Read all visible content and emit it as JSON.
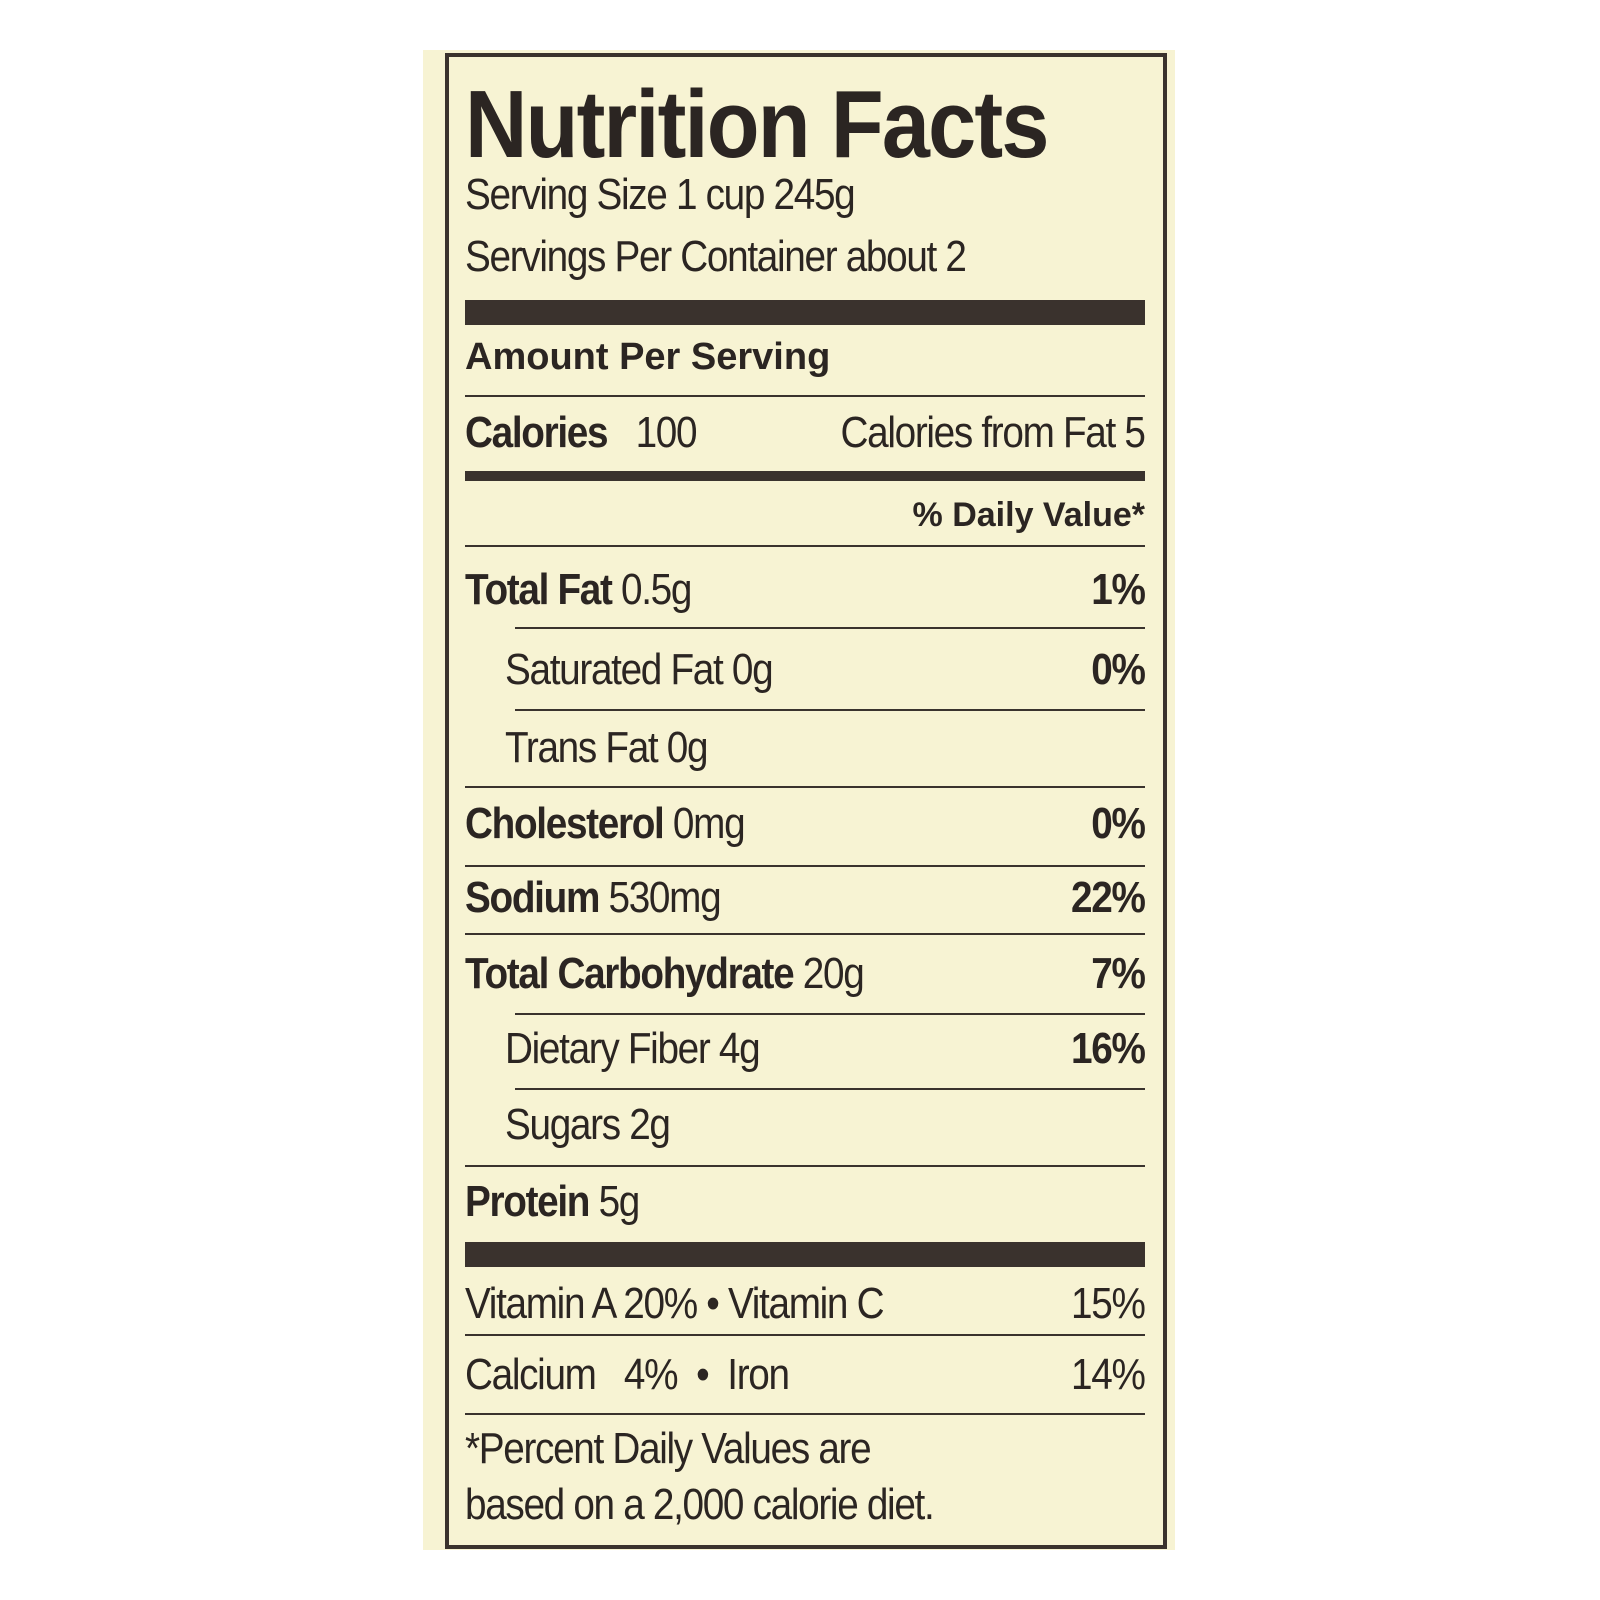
{
  "title": "Nutrition Facts",
  "serving_size": "Serving Size 1 cup 245g",
  "servings_per_container": "Servings Per Container about 2",
  "amount_per_serving": "Amount Per Serving",
  "calories": {
    "label": "Calories",
    "value": "100",
    "from_fat": "Calories from Fat 5"
  },
  "daily_value_header": "% Daily Value*",
  "nutrients": [
    {
      "label": "Total Fat",
      "amount": "0.5g",
      "dv": "1%"
    },
    {
      "label": "Saturated Fat",
      "amount": "0g",
      "dv": "0%"
    },
    {
      "label": "Trans Fat",
      "amount": "0g",
      "dv": ""
    },
    {
      "label": "Cholesterol",
      "amount": "0mg",
      "dv": "0%"
    },
    {
      "label": "Sodium",
      "amount": "530mg",
      "dv": "22%"
    },
    {
      "label": "Total Carbohydrate",
      "amount": "20g",
      "dv": "7%"
    },
    {
      "label": "Dietary Fiber",
      "amount": "4g",
      "dv": "16%"
    },
    {
      "label": "Sugars",
      "amount": "2g",
      "dv": ""
    },
    {
      "label": "Protein",
      "amount": "5g",
      "dv": ""
    }
  ],
  "vitamins": [
    {
      "label": "Vitamin A",
      "value": "20%"
    },
    {
      "label": "Vitamin C",
      "value": "15%"
    },
    {
      "label": "Calcium",
      "value": "4%"
    },
    {
      "label": "Iron",
      "value": "14%"
    }
  ],
  "bullet": "•",
  "footnote_line1": "*Percent Daily Values are",
  "footnote_line2": "based on a 2,000 calorie diet."
}
